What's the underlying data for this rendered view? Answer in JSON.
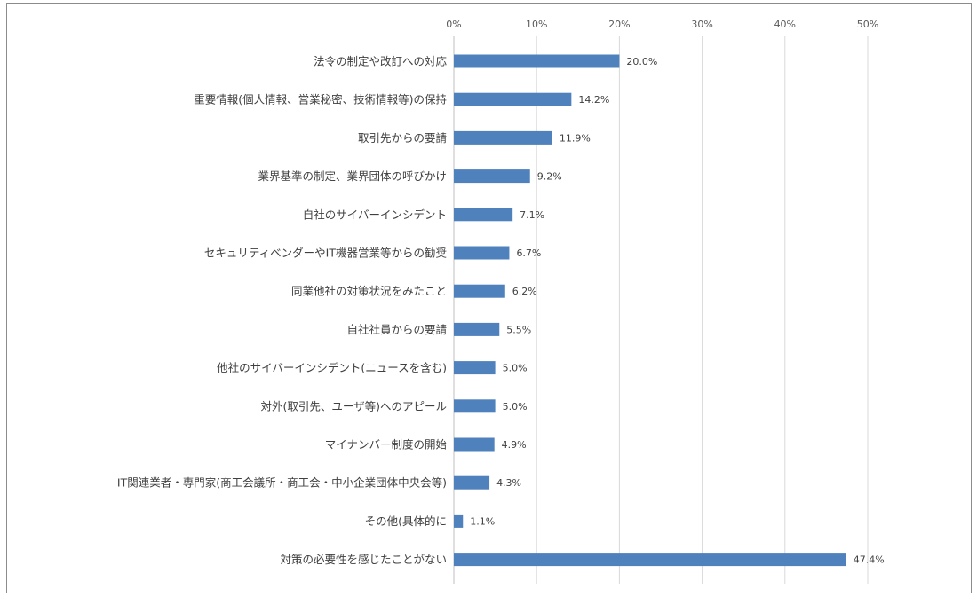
{
  "chart_data": {
    "type": "bar",
    "orientation": "horizontal",
    "categories": [
      "法令の制定や改訂への対応",
      "重要情報(個人情報、営業秘密、技術情報等)の保持",
      "取引先からの要請",
      "業界基準の制定、業界団体の呼びかけ",
      "自社のサイバーインシデント",
      "セキュリティベンダーやIT機器営業等からの勧奨",
      "同業他社の対策状況をみたこと",
      "自社社員からの要請",
      "他社のサイバーインシデント(ニュースを含む)",
      "対外(取引先、ユーザ等)へのアピール",
      "マイナンバー制度の開始",
      "IT関連業者・専門家(商工会議所・商工会・中小企業団体中央会等)",
      "その他(具体的に",
      "対策の必要性を感じたことがない"
    ],
    "values": [
      20.0,
      14.2,
      11.9,
      9.2,
      7.1,
      6.7,
      6.2,
      5.5,
      5.0,
      5.0,
      4.9,
      4.3,
      1.1,
      47.4
    ],
    "data_labels": [
      "20.0%",
      "14.2%",
      "11.9%",
      "9.2%",
      "7.1%",
      "6.7%",
      "6.2%",
      "5.5%",
      "5.0%",
      "5.0%",
      "4.9%",
      "4.3%",
      "1.1%",
      "47.4%"
    ],
    "x_ticks": [
      "0%",
      "10%",
      "20%",
      "30%",
      "40%",
      "50%"
    ],
    "xlim": [
      0,
      50
    ],
    "x_axis_position": "top",
    "grid": true,
    "legend": "none",
    "title": "",
    "xlabel": "",
    "ylabel": "",
    "bar_color": "#4f81bd",
    "gridline_color": "#d9d9d9"
  }
}
